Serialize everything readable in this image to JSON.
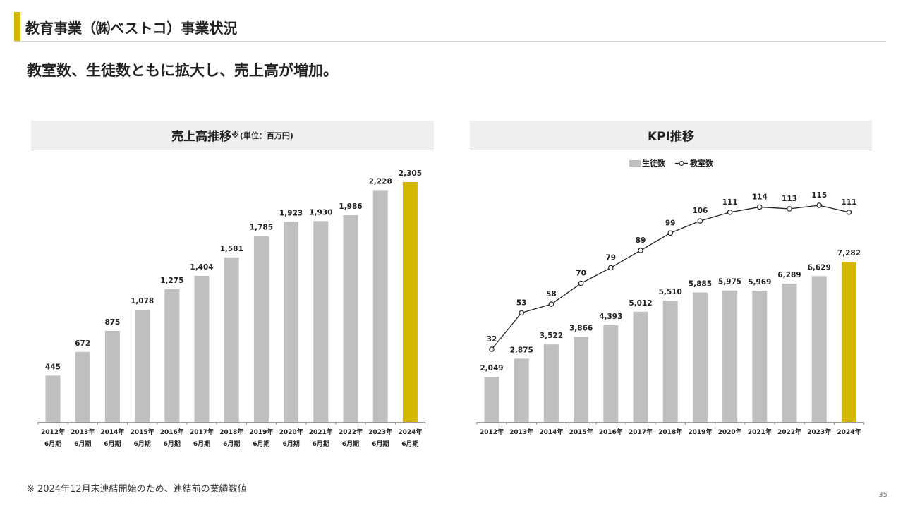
{
  "header": {
    "title": "教育事業（㈱ベストコ）事業状況",
    "subtitle": "教室数、生徒数ともに拡大し、売上高が増加。"
  },
  "colors": {
    "accent": "#d4b800",
    "bar": "#bfbfbf",
    "line": "#222222"
  },
  "footnote": "※ 2024年12月末連結開始のため、連結前の業績数値",
  "page_number": "35",
  "chart_data": [
    {
      "type": "bar",
      "title": "売上高推移",
      "title_mark": "※",
      "title_unit": "(単位：百万円)",
      "categories": [
        "2012年",
        "2013年",
        "2014年",
        "2015年",
        "2016年",
        "2017年",
        "2018年",
        "2019年",
        "2020年",
        "2021年",
        "2022年",
        "2023年",
        "2024年"
      ],
      "category_sublabel": "6月期",
      "values": [
        445,
        672,
        875,
        1078,
        1275,
        1404,
        1581,
        1785,
        1923,
        1930,
        1986,
        2228,
        2305
      ],
      "value_labels": [
        "445",
        "672",
        "875",
        "1,078",
        "1,275",
        "1,404",
        "1,581",
        "1,785",
        "1,923",
        "1,930",
        "1,986",
        "2,228",
        "2,305"
      ],
      "highlight_index": 12,
      "ylim": [
        0,
        2305
      ]
    },
    {
      "type": "bar+line",
      "title": "KPI推移",
      "legend": {
        "bar": "生徒数",
        "line": "教室数",
        "placement": "top-center"
      },
      "categories": [
        "2012年",
        "2013年",
        "2014年",
        "2015年",
        "2016年",
        "2017年",
        "2018年",
        "2019年",
        "2020年",
        "2021年",
        "2022年",
        "2023年",
        "2024年"
      ],
      "series": [
        {
          "name": "生徒数",
          "kind": "bar",
          "values": [
            2049,
            2875,
            3522,
            3866,
            4393,
            5012,
            5510,
            5885,
            5975,
            5969,
            6289,
            6629,
            7282
          ],
          "value_labels": [
            "2,049",
            "2,875",
            "3,522",
            "3,866",
            "4,393",
            "5,012",
            "5,510",
            "5,885",
            "5,975",
            "5,969",
            "6,289",
            "6,629",
            "7,282"
          ]
        },
        {
          "name": "教室数",
          "kind": "line",
          "values": [
            32,
            53,
            58,
            70,
            79,
            89,
            99,
            106,
            111,
            114,
            113,
            115,
            111
          ],
          "value_labels": [
            "32",
            "53",
            "58",
            "70",
            "79",
            "89",
            "99",
            "106",
            "111",
            "114",
            "113",
            "115",
            "111"
          ]
        }
      ],
      "highlight_index": 12
    }
  ]
}
